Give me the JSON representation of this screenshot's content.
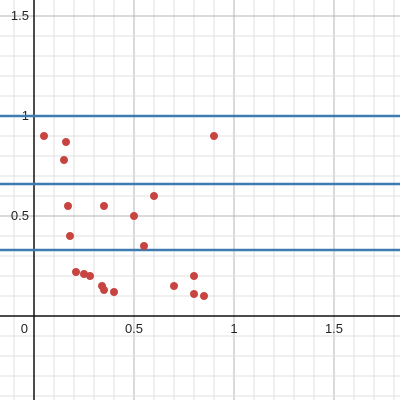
{
  "chart_data": {
    "type": "scatter",
    "title": "",
    "xlabel": "",
    "ylabel": "",
    "xlim": [
      -0.17,
      1.83
    ],
    "ylim": [
      -0.42,
      1.58
    ],
    "grid": true,
    "x_ticks": [
      {
        "value": 0,
        "label": "0"
      },
      {
        "value": 0.5,
        "label": "0.5"
      },
      {
        "value": 1,
        "label": "1"
      },
      {
        "value": 1.5,
        "label": "1.5"
      }
    ],
    "y_ticks": [
      {
        "value": 0.5,
        "label": "0.5"
      },
      {
        "value": 1,
        "label": "1"
      },
      {
        "value": 1.5,
        "label": "1.5"
      }
    ],
    "horizontal_lines": [
      {
        "y": 1.0
      },
      {
        "y": 0.66
      },
      {
        "y": 0.33
      }
    ],
    "series": [
      {
        "name": "points",
        "color": "#c74440",
        "points": [
          {
            "x": 0.05,
            "y": 0.9
          },
          {
            "x": 0.16,
            "y": 0.87
          },
          {
            "x": 0.15,
            "y": 0.78
          },
          {
            "x": 0.17,
            "y": 0.55
          },
          {
            "x": 0.18,
            "y": 0.4
          },
          {
            "x": 0.21,
            "y": 0.22
          },
          {
            "x": 0.25,
            "y": 0.21
          },
          {
            "x": 0.28,
            "y": 0.2
          },
          {
            "x": 0.34,
            "y": 0.15
          },
          {
            "x": 0.35,
            "y": 0.13
          },
          {
            "x": 0.4,
            "y": 0.12
          },
          {
            "x": 0.35,
            "y": 0.55
          },
          {
            "x": 0.5,
            "y": 0.5
          },
          {
            "x": 0.55,
            "y": 0.35
          },
          {
            "x": 0.6,
            "y": 0.6
          },
          {
            "x": 0.7,
            "y": 0.15
          },
          {
            "x": 0.8,
            "y": 0.2
          },
          {
            "x": 0.8,
            "y": 0.11
          },
          {
            "x": 0.85,
            "y": 0.1
          },
          {
            "x": 0.9,
            "y": 0.9
          }
        ]
      }
    ]
  },
  "colors": {
    "line_color": "#3d7bb0",
    "point_color": "#c74440"
  }
}
